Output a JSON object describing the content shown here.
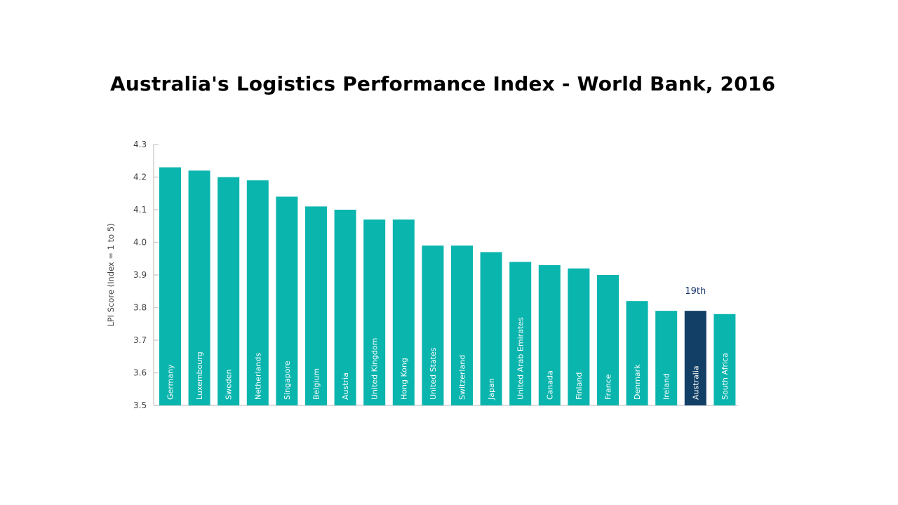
{
  "title": "Australia's Logistics Performance Index - World Bank, 2016",
  "chart_data": {
    "type": "bar",
    "title": "Australia's Logistics Performance Index - World Bank, 2016",
    "xlabel": "",
    "ylabel": "LPI Score (Index = 1 to 5)",
    "ylim": [
      3.5,
      4.3
    ],
    "yticks": [
      "3.5",
      "3.6",
      "3.7",
      "3.8",
      "3.9",
      "4.0",
      "4.1",
      "4.2",
      "4.3"
    ],
    "grid": false,
    "categories": [
      "Germany",
      "Luxembourg",
      "Sweden",
      "Netherlands",
      "Singapore",
      "Belgium",
      "Austria",
      "United Kingdom",
      "Hong Kong",
      "United States",
      "Switzerland",
      "Japan",
      "United Arab Emirates",
      "Canada",
      "Finland",
      "France",
      "Denmark",
      "Ireland",
      "Australia",
      "South Africa"
    ],
    "values": [
      4.23,
      4.22,
      4.2,
      4.19,
      4.14,
      4.11,
      4.1,
      4.07,
      4.07,
      3.99,
      3.99,
      3.97,
      3.94,
      3.93,
      3.92,
      3.9,
      3.82,
      3.79,
      3.79,
      3.78
    ],
    "highlight": {
      "category": "Australia",
      "annotation": "19th"
    },
    "colors": {
      "bar": "#0ab5ae",
      "highlight": "#123f66",
      "axis": "#d0d0d0"
    }
  }
}
